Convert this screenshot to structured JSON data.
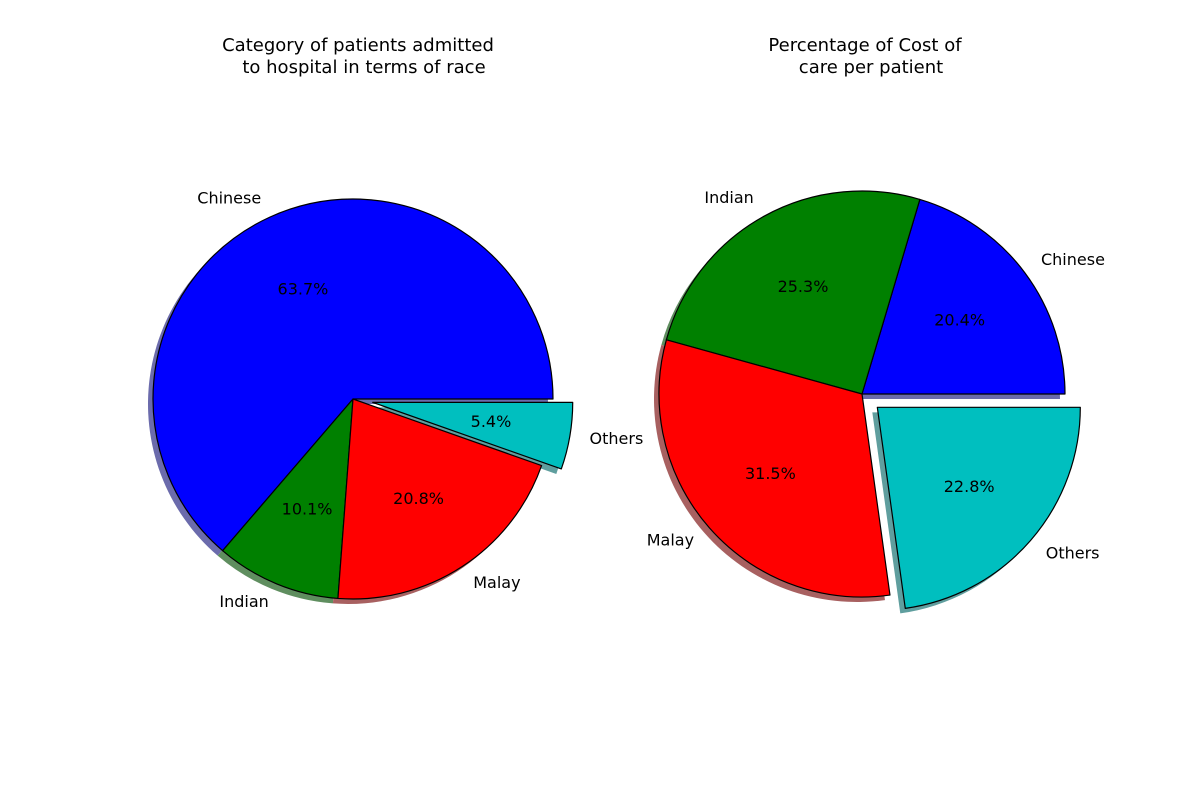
{
  "chart_data": [
    {
      "type": "pie",
      "title_lines": [
        "Category of patients admitted",
        "to hospital in terms of race"
      ],
      "labels": [
        "Chinese",
        "Indian",
        "Malay",
        "Others"
      ],
      "values": [
        63.7,
        10.1,
        20.8,
        5.4
      ],
      "value_labels": [
        "63.7%",
        "10.1%",
        "20.8%",
        "5.4%"
      ],
      "colors": [
        "#0000ff",
        "#008000",
        "#ff0000",
        "#00bfbf"
      ],
      "explode": [
        0,
        0,
        0,
        0.1
      ],
      "shadow": true,
      "start_angle": 0
    },
    {
      "type": "pie",
      "title_lines": [
        "Percentage of Cost of",
        "care per patient"
      ],
      "labels": [
        "Chinese",
        "Indian",
        "Malay",
        "Others"
      ],
      "values": [
        20.4,
        25.3,
        31.5,
        22.8
      ],
      "value_labels": [
        "20.4%",
        "25.3%",
        "31.5%",
        "22.8%"
      ],
      "colors": [
        "#0000ff",
        "#008000",
        "#ff0000",
        "#00bfbf"
      ],
      "explode": [
        0,
        0,
        0,
        0.1
      ],
      "shadow": true,
      "start_angle": 0
    }
  ]
}
